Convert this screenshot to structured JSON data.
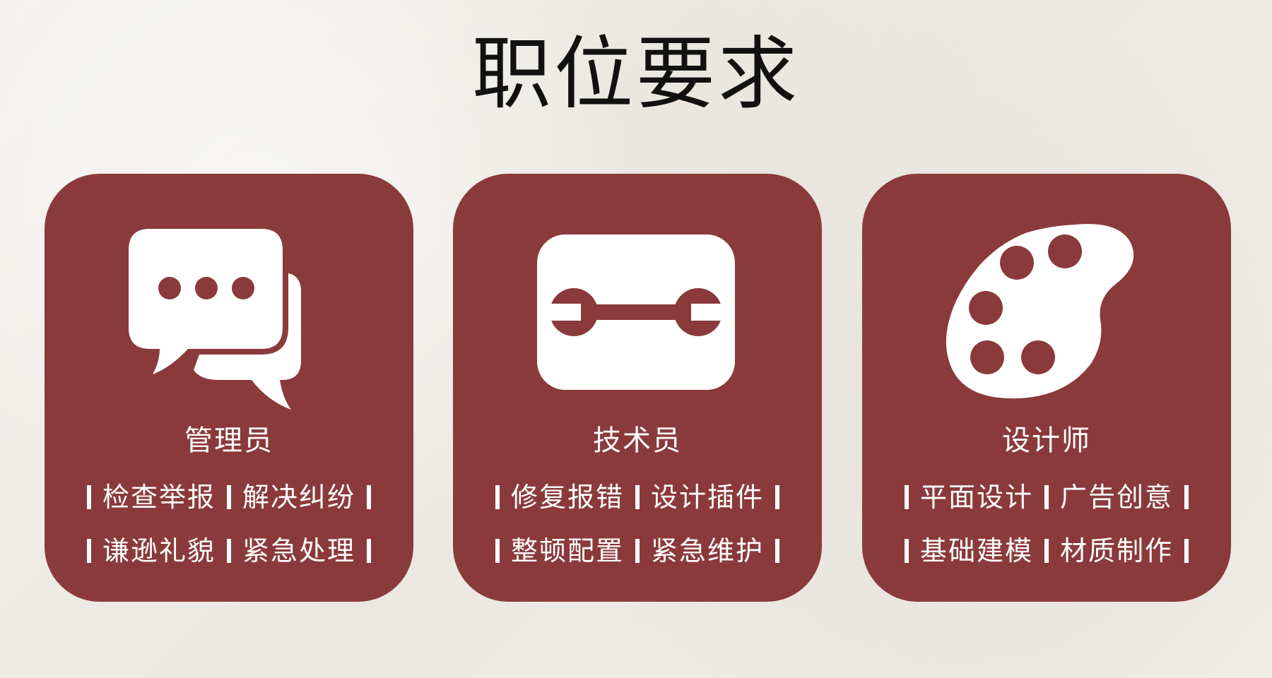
{
  "title": "职位要求",
  "colors": {
    "card": "#8b3a3b",
    "text": "#ffffff",
    "title": "#111111",
    "background": "#f1efea"
  },
  "cards": [
    {
      "role": "管理员",
      "icon": "chat-bubbles-icon",
      "rows": [
        [
          "检查举报",
          "解决纠纷"
        ],
        [
          "谦逊礼貌",
          "紧急处理"
        ]
      ]
    },
    {
      "role": "技术员",
      "icon": "wrench-icon",
      "rows": [
        [
          "修复报错",
          "设计插件"
        ],
        [
          "整顿配置",
          "紧急维护"
        ]
      ]
    },
    {
      "role": "设计师",
      "icon": "palette-icon",
      "rows": [
        [
          "平面设计",
          "广告创意"
        ],
        [
          "基础建模",
          "材质制作"
        ]
      ]
    }
  ]
}
